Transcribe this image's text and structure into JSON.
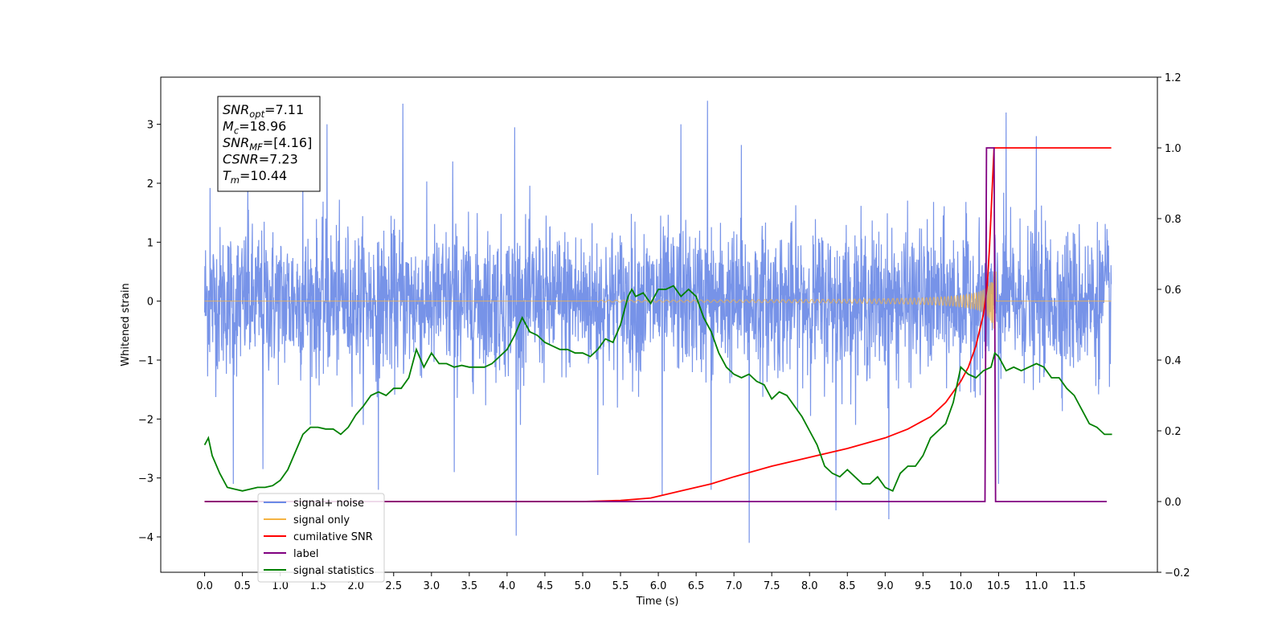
{
  "chart_data": {
    "type": "line",
    "xlabel": "Time (s)",
    "ylabel_left": "Whitened strain",
    "ylabel_right": "",
    "xlim": [
      -0.58,
      12.6
    ],
    "ylim_left": [
      -4.6,
      3.8
    ],
    "ylim_right": [
      -0.2,
      1.2
    ],
    "x_ticks": [
      "0.0",
      "0.5",
      "1.0",
      "1.5",
      "2.0",
      "2.5",
      "3.0",
      "3.5",
      "4.0",
      "4.5",
      "5.0",
      "5.5",
      "6.0",
      "6.5",
      "7.0",
      "7.5",
      "8.0",
      "8.5",
      "9.0",
      "9.5",
      "10.0",
      "10.5",
      "11.0",
      "11.5"
    ],
    "y_left_ticks": [
      "3",
      "2",
      "1",
      "0",
      "−1",
      "−2",
      "−3",
      "−4"
    ],
    "y_right_ticks": [
      "1.2",
      "1.0",
      "0.8",
      "0.6",
      "0.4",
      "0.2",
      "0.0",
      "−0.2"
    ],
    "grid": false,
    "legend_position": "lower-left",
    "colors": {
      "signal_noise": "#6b8ae6",
      "signal_only": "#f5b342",
      "cumulative_snr": "#ff0000",
      "label": "#800080",
      "signal_statistics": "#008000"
    },
    "series": [
      {
        "name": "signal+ noise",
        "axis": "left",
        "note_envelope": "noisy whitened strain from 0.0 to 11.99 s, typically within ±1.3, peaks to about +3.4 and -4.1",
        "peaks": [
          [
            0.07,
            1.92
          ],
          [
            0.57,
            2.05
          ],
          [
            1.3,
            2.27
          ],
          [
            1.62,
            3.0
          ],
          [
            2.62,
            3.35
          ],
          [
            3.28,
            2.37
          ],
          [
            4.1,
            2.95
          ],
          [
            6.3,
            3.0
          ],
          [
            6.65,
            3.4
          ],
          [
            7.1,
            2.65
          ],
          [
            10.6,
            3.2
          ],
          [
            11.0,
            2.8
          ]
        ],
        "troughs": [
          [
            0.38,
            -3.1
          ],
          [
            0.77,
            -2.85
          ],
          [
            2.3,
            -3.2
          ],
          [
            3.3,
            -2.9
          ],
          [
            4.12,
            -3.98
          ],
          [
            5.2,
            -2.95
          ],
          [
            6.05,
            -3.3
          ],
          [
            6.7,
            -3.2
          ],
          [
            7.2,
            -4.1
          ],
          [
            8.35,
            -3.55
          ],
          [
            9.05,
            -3.7
          ],
          [
            10.5,
            -3.1
          ]
        ]
      },
      {
        "name": "signal only",
        "axis": "left",
        "chirp": {
          "start": 5.2,
          "merger": 10.44,
          "end": 11.99,
          "peak_amplitude": 0.55
        }
      },
      {
        "name": "cumilative SNR",
        "axis": "right",
        "x": [
          0.0,
          5.0,
          5.5,
          5.9,
          6.3,
          6.7,
          7.0,
          7.5,
          8.0,
          8.5,
          9.0,
          9.3,
          9.6,
          9.8,
          10.0,
          10.1,
          10.2,
          10.3,
          10.35,
          10.38,
          10.41,
          10.44,
          10.5,
          11.0,
          11.5,
          11.99
        ],
        "y": [
          0.0,
          0.0,
          0.003,
          0.01,
          0.03,
          0.05,
          0.07,
          0.1,
          0.125,
          0.15,
          0.18,
          0.205,
          0.24,
          0.28,
          0.34,
          0.38,
          0.44,
          0.53,
          0.61,
          0.72,
          0.86,
          1.0,
          1.0,
          1.0,
          1.0,
          1.0
        ]
      },
      {
        "name": "label",
        "axis": "right",
        "x": [
          0.0,
          10.32,
          10.34,
          10.44,
          10.46,
          11.93
        ],
        "y": [
          0,
          0,
          1,
          1,
          0,
          0
        ]
      },
      {
        "name": "signal statistics",
        "axis": "right",
        "x": [
          0.0,
          0.05,
          0.1,
          0.2,
          0.3,
          0.4,
          0.5,
          0.6,
          0.7,
          0.8,
          0.9,
          1.0,
          1.1,
          1.2,
          1.3,
          1.4,
          1.5,
          1.6,
          1.7,
          1.8,
          1.9,
          2.0,
          2.1,
          2.2,
          2.3,
          2.4,
          2.5,
          2.6,
          2.7,
          2.8,
          2.9,
          3.0,
          3.1,
          3.2,
          3.3,
          3.4,
          3.5,
          3.6,
          3.7,
          3.8,
          3.9,
          4.0,
          4.1,
          4.2,
          4.3,
          4.4,
          4.5,
          4.6,
          4.7,
          4.8,
          4.9,
          5.0,
          5.1,
          5.2,
          5.3,
          5.4,
          5.5,
          5.6,
          5.65,
          5.7,
          5.8,
          5.9,
          6.0,
          6.1,
          6.2,
          6.3,
          6.4,
          6.5,
          6.6,
          6.7,
          6.8,
          6.9,
          7.0,
          7.1,
          7.2,
          7.3,
          7.4,
          7.5,
          7.6,
          7.7,
          7.8,
          7.9,
          8.0,
          8.1,
          8.2,
          8.3,
          8.4,
          8.5,
          8.6,
          8.7,
          8.8,
          8.9,
          9.0,
          9.1,
          9.2,
          9.3,
          9.4,
          9.5,
          9.6,
          9.7,
          9.8,
          9.9,
          10.0,
          10.1,
          10.2,
          10.3,
          10.4,
          10.45,
          10.5,
          10.6,
          10.7,
          10.8,
          10.9,
          11.0,
          11.1,
          11.2,
          11.3,
          11.4,
          11.5,
          11.6,
          11.7,
          11.8,
          11.9,
          12.0
        ],
        "y": [
          0.16,
          0.18,
          0.13,
          0.08,
          0.04,
          0.035,
          0.03,
          0.035,
          0.04,
          0.04,
          0.045,
          0.06,
          0.09,
          0.14,
          0.19,
          0.21,
          0.21,
          0.205,
          0.205,
          0.19,
          0.21,
          0.245,
          0.27,
          0.3,
          0.31,
          0.3,
          0.32,
          0.32,
          0.35,
          0.43,
          0.38,
          0.42,
          0.39,
          0.39,
          0.38,
          0.385,
          0.38,
          0.38,
          0.38,
          0.39,
          0.41,
          0.43,
          0.47,
          0.52,
          0.48,
          0.47,
          0.45,
          0.44,
          0.43,
          0.43,
          0.42,
          0.42,
          0.41,
          0.43,
          0.46,
          0.45,
          0.5,
          0.58,
          0.6,
          0.58,
          0.59,
          0.56,
          0.6,
          0.6,
          0.61,
          0.58,
          0.6,
          0.58,
          0.52,
          0.48,
          0.42,
          0.38,
          0.36,
          0.35,
          0.36,
          0.34,
          0.33,
          0.29,
          0.31,
          0.3,
          0.27,
          0.24,
          0.2,
          0.16,
          0.1,
          0.08,
          0.07,
          0.09,
          0.07,
          0.05,
          0.05,
          0.07,
          0.04,
          0.03,
          0.08,
          0.1,
          0.1,
          0.13,
          0.18,
          0.2,
          0.22,
          0.28,
          0.38,
          0.36,
          0.35,
          0.37,
          0.38,
          0.42,
          0.41,
          0.37,
          0.38,
          0.37,
          0.38,
          0.39,
          0.38,
          0.35,
          0.35,
          0.32,
          0.3,
          0.26,
          0.22,
          0.21,
          0.19,
          0.19
        ]
      }
    ],
    "stats_box": [
      {
        "main": "SNR",
        "sub": "opt",
        "value": "=7.11"
      },
      {
        "main": "M",
        "sub": "c",
        "value": "=18.96"
      },
      {
        "main": "SNR",
        "sub": "MF",
        "value": "=[4.16]"
      },
      {
        "main": "CSNR",
        "sub": "",
        "value": "=7.23"
      },
      {
        "main": "T",
        "sub": "m",
        "value": "=10.44"
      }
    ],
    "legend": [
      {
        "label": "signal+ noise",
        "color": "#6b8ae6"
      },
      {
        "label": "signal only",
        "color": "#f5b342"
      },
      {
        "label": "cumilative SNR",
        "color": "#ff0000"
      },
      {
        "label": "label",
        "color": "#800080"
      },
      {
        "label": "signal statistics",
        "color": "#008000"
      }
    ]
  }
}
